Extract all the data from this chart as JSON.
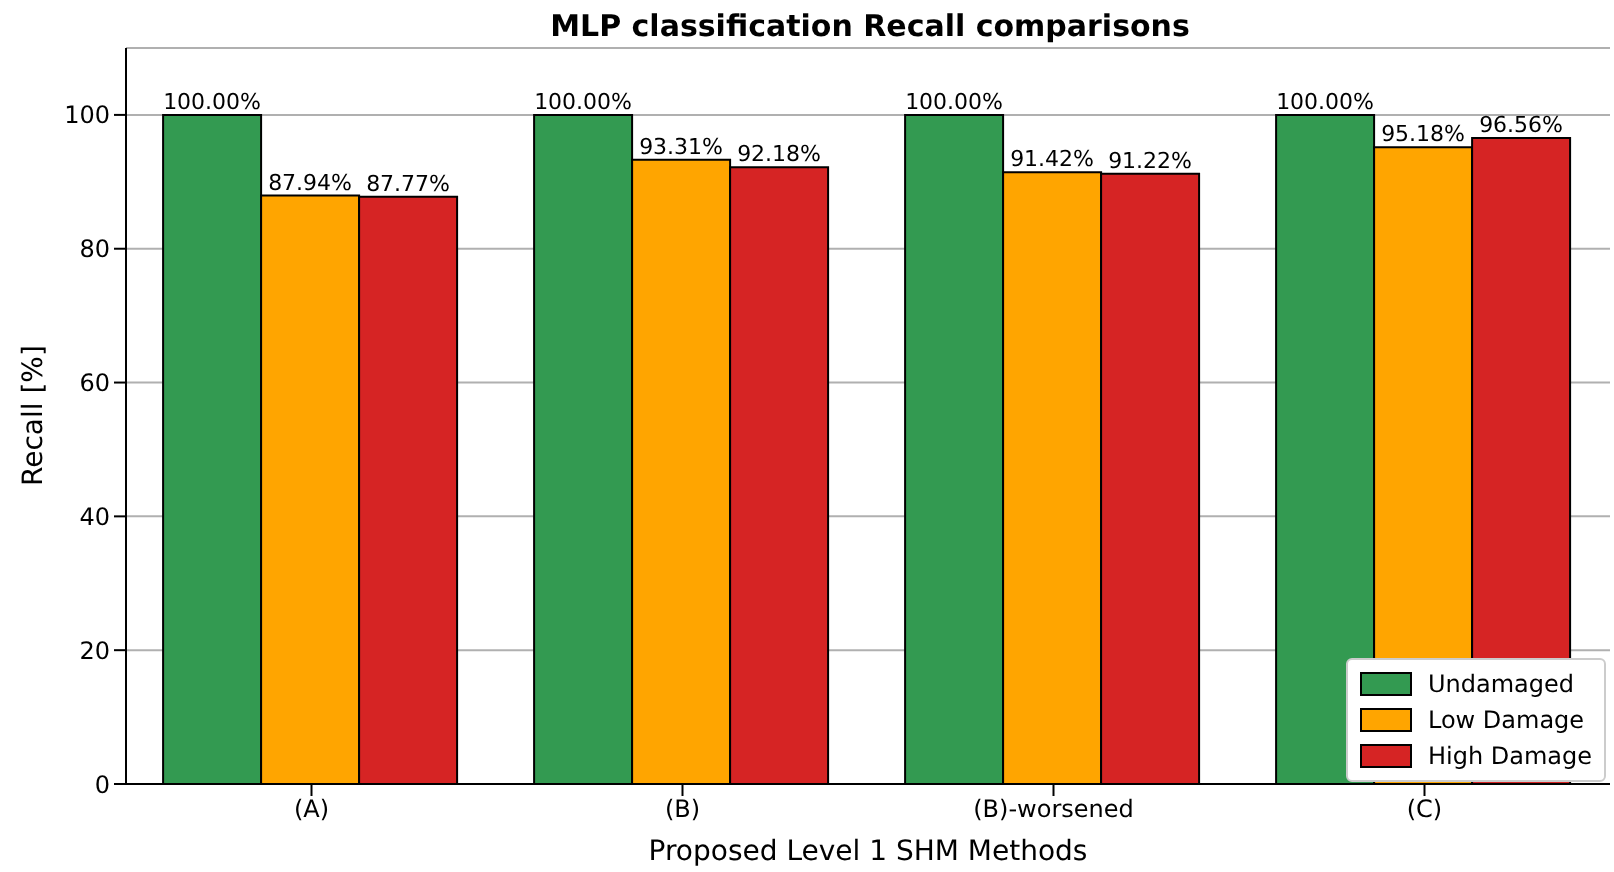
{
  "chart_data": {
    "type": "bar",
    "title": "MLP classification Recall comparisons",
    "xlabel": "Proposed Level 1 SHM Methods",
    "ylabel": "Recall [%]",
    "categories": [
      "(A)",
      "(B)",
      "(B)-worsened",
      "(C)"
    ],
    "series": [
      {
        "name": "Undamaged",
        "color": "#339a51",
        "values": [
          100,
          100,
          100,
          100
        ],
        "value_labels": [
          "100.00%",
          "100.00%",
          "100.00%",
          "100.00%"
        ]
      },
      {
        "name": "Low Damage",
        "color": "#ffa500",
        "values": [
          87.94,
          93.31,
          91.42,
          95.18
        ],
        "value_labels": [
          "87.94%",
          "93.31%",
          "91.42%",
          "95.18%"
        ]
      },
      {
        "name": "High Damage",
        "color": "#d62424",
        "values": [
          87.77,
          92.18,
          91.22,
          96.56
        ],
        "value_labels": [
          "87.77%",
          "92.18%",
          "91.22%",
          "96.56%"
        ]
      }
    ],
    "ylim": [
      0,
      110
    ],
    "yticks": [
      0,
      20,
      40,
      60,
      80,
      100
    ],
    "grid": "y",
    "legend": "bottom right"
  }
}
